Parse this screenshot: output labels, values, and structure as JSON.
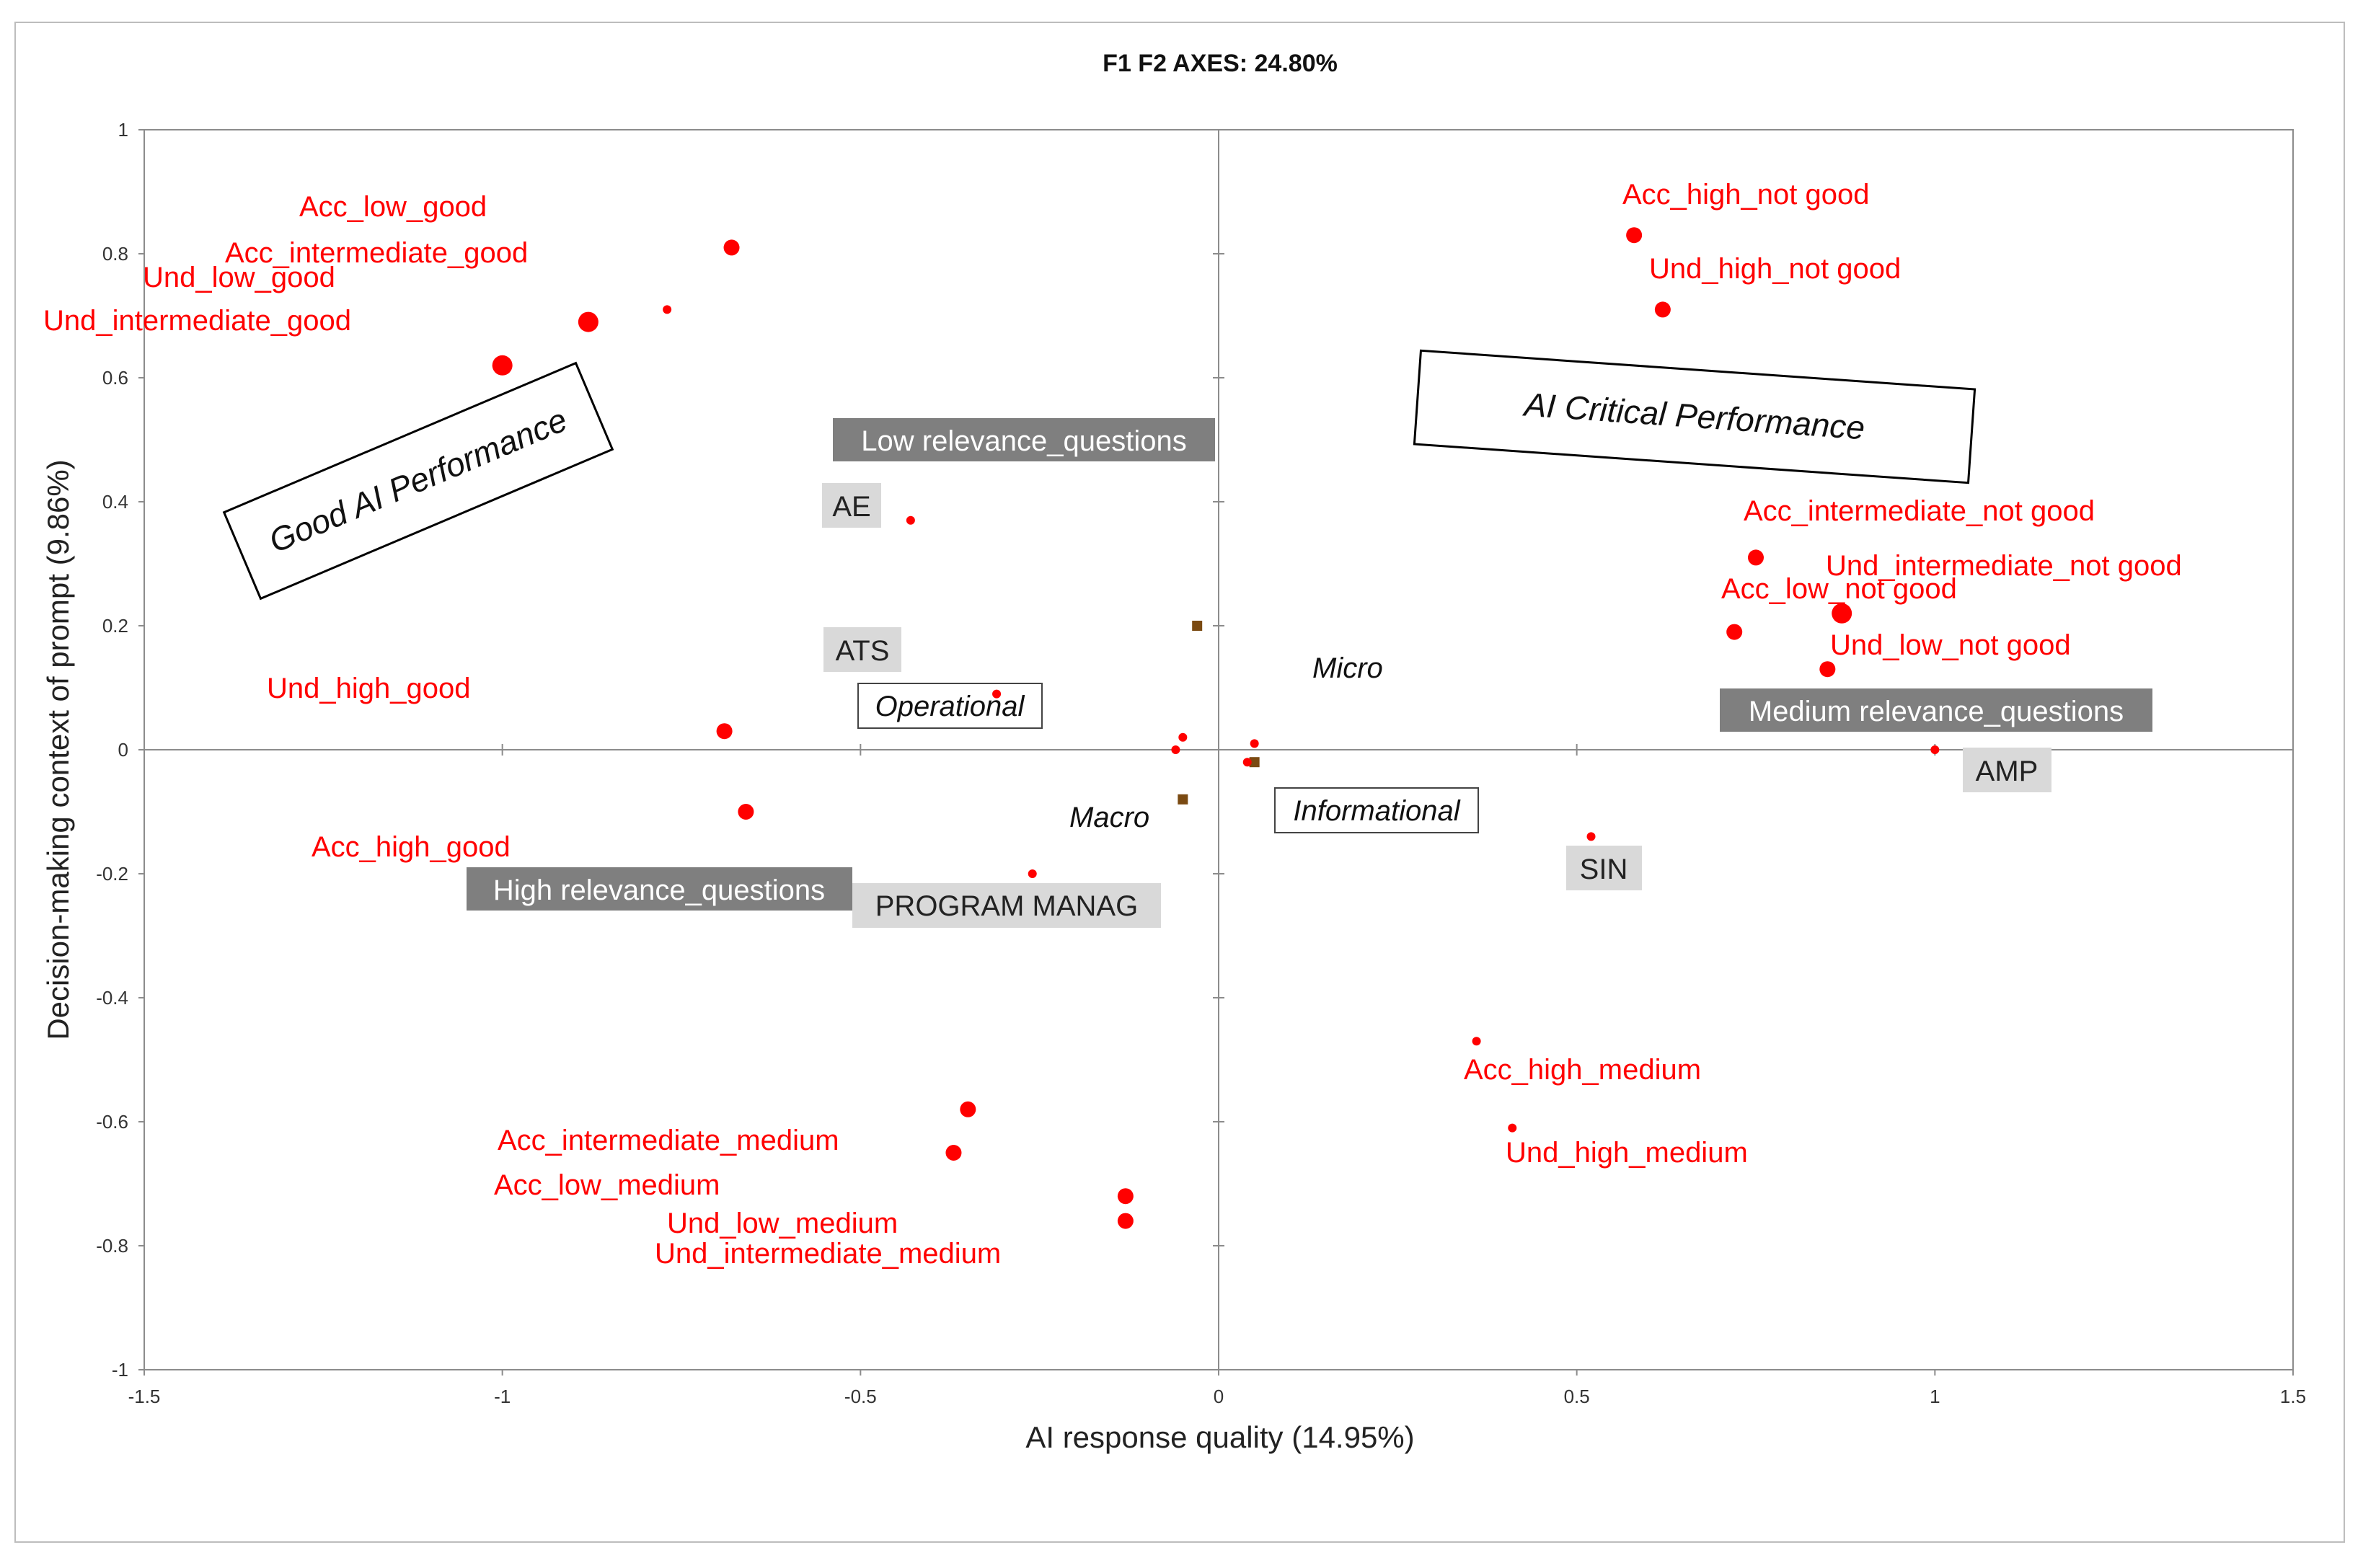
{
  "chart_data": {
    "type": "scatter",
    "title": "F1 F2 AXES: 24.80%",
    "xlabel": "AI response quality (14.95%)",
    "ylabel": "Decision-making context of prompt (9.86%)",
    "xlim": [
      -1.5,
      1.5
    ],
    "ylim": [
      -1,
      1
    ],
    "xticks": [
      "-1.5",
      "-1",
      "-0.5",
      "0",
      "0.5",
      "1",
      "1.5"
    ],
    "yticks": [
      "-1",
      "-0.8",
      "-0.6",
      "-0.4",
      "-0.2",
      "0",
      "0.2",
      "0.4",
      "0.6",
      "0.8",
      "1"
    ],
    "xtick_values": [
      -1.5,
      -1,
      -0.5,
      0,
      0.5,
      1,
      1.5
    ],
    "ytick_values": [
      -1,
      -0.8,
      -0.6,
      -0.4,
      -0.2,
      0,
      0.2,
      0.4,
      0.6,
      0.8,
      1
    ],
    "points": [
      {
        "x": -0.68,
        "y": 0.81,
        "size": "medium",
        "name": "dot-a"
      },
      {
        "x": -0.77,
        "y": 0.71,
        "size": "small",
        "name": "dot-b"
      },
      {
        "x": -0.88,
        "y": 0.69,
        "size": "large",
        "name": "dot-c"
      },
      {
        "x": -1.0,
        "y": 0.62,
        "size": "large",
        "name": "dot-d"
      },
      {
        "x": -0.43,
        "y": 0.37,
        "size": "small",
        "name": "dot-e"
      },
      {
        "x": -0.31,
        "y": 0.09,
        "size": "small",
        "name": "dot-f"
      },
      {
        "x": -0.69,
        "y": 0.03,
        "size": "medium",
        "name": "dot-g"
      },
      {
        "x": -0.66,
        "y": -0.1,
        "size": "medium",
        "name": "dot-h"
      },
      {
        "x": -0.26,
        "y": -0.2,
        "size": "small",
        "name": "dot-i"
      },
      {
        "x": -0.05,
        "y": 0.02,
        "size": "small",
        "name": "dot-j"
      },
      {
        "x": -0.06,
        "y": 0.0,
        "size": "small",
        "name": "dot-k"
      },
      {
        "x": 0.05,
        "y": 0.01,
        "size": "small",
        "name": "dot-l"
      },
      {
        "x": 0.04,
        "y": -0.02,
        "size": "small",
        "name": "dot-m"
      },
      {
        "x": 0.58,
        "y": 0.83,
        "size": "medium",
        "name": "dot-n"
      },
      {
        "x": 0.62,
        "y": 0.71,
        "size": "medium",
        "name": "dot-o"
      },
      {
        "x": 0.75,
        "y": 0.31,
        "size": "medium",
        "name": "dot-p"
      },
      {
        "x": 0.87,
        "y": 0.22,
        "size": "large",
        "name": "dot-q"
      },
      {
        "x": 0.72,
        "y": 0.19,
        "size": "medium",
        "name": "dot-r"
      },
      {
        "x": 0.85,
        "y": 0.13,
        "size": "medium",
        "name": "dot-s"
      },
      {
        "x": 1.0,
        "y": 0.0,
        "size": "small",
        "name": "dot-t"
      },
      {
        "x": 0.52,
        "y": -0.14,
        "size": "small",
        "name": "dot-u"
      },
      {
        "x": 0.36,
        "y": -0.47,
        "size": "small",
        "name": "dot-v"
      },
      {
        "x": 0.41,
        "y": -0.61,
        "size": "small",
        "name": "dot-w"
      },
      {
        "x": -0.35,
        "y": -0.58,
        "size": "medium",
        "name": "dot-x"
      },
      {
        "x": -0.37,
        "y": -0.65,
        "size": "medium",
        "name": "dot-y"
      },
      {
        "x": -0.13,
        "y": -0.72,
        "size": "medium",
        "name": "dot-z"
      },
      {
        "x": -0.13,
        "y": -0.76,
        "size": "medium",
        "name": "dot-aa"
      }
    ],
    "square_markers": [
      {
        "x": -0.03,
        "y": 0.2
      },
      {
        "x": 0.05,
        "y": -0.02
      },
      {
        "x": -0.05,
        "y": -0.08
      }
    ],
    "point_labels": [
      "Acc_low_good",
      "Acc_intermediate_good",
      "Und_low_good",
      "Und_intermediate_good",
      "Und_high_good",
      "Acc_high_good",
      "Acc_intermediate_medium",
      "Acc_low_medium",
      "Und_low_medium",
      "Und_intermediate_medium",
      "Acc_high_not good",
      "Und_high_not good",
      "Acc_intermediate_not good",
      "Und_intermediate_not good",
      "Acc_low_not good",
      "Und_low_not good",
      "Acc_high_medium",
      "Und_high_medium"
    ],
    "dark_box_labels": [
      "Low relevance_questions",
      "Medium relevance_questions",
      "High relevance_questions"
    ],
    "light_box_labels": [
      "AE",
      "ATS",
      "AMP",
      "SIN",
      "PROGRAM MANAG"
    ],
    "italic_labels": [
      "Micro",
      "Macro"
    ],
    "italic_boxed_labels": [
      "Operational",
      "Informational"
    ],
    "annotations": [
      "Good AI Performance",
      "AI Critical Performance"
    ],
    "colors": {
      "points": "#ff0000",
      "squares": "#7a4a12",
      "dark_box": "#7f7f7f",
      "light_box": "#d9d9d9",
      "axis": "#8c8c8c"
    }
  }
}
